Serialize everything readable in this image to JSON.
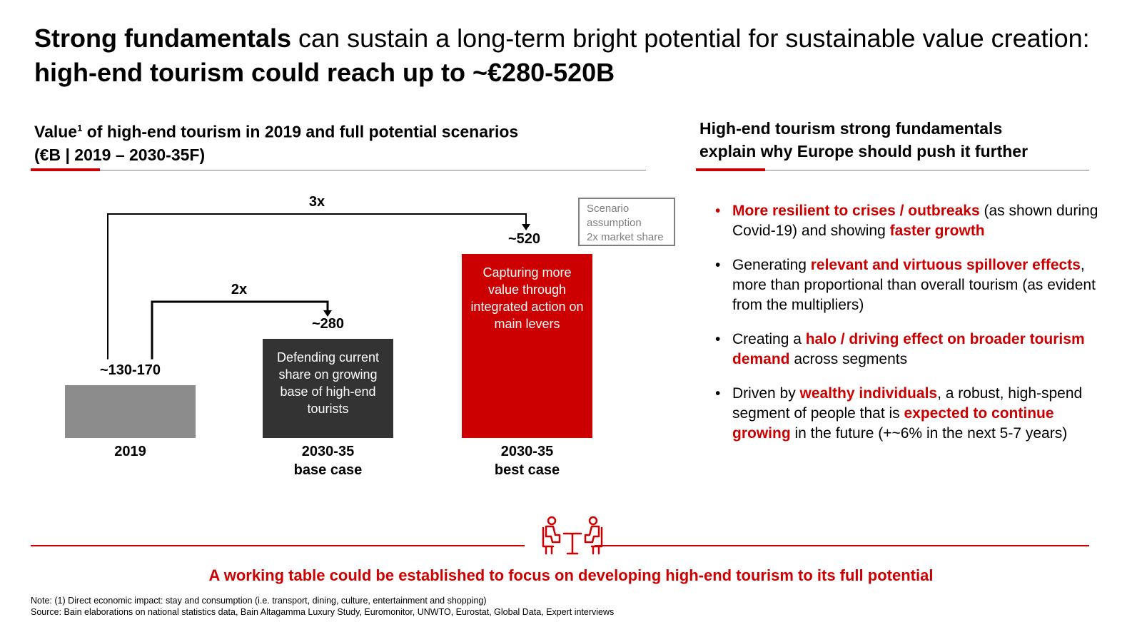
{
  "title": {
    "part1_bold": "Strong fundamentals",
    "part2": " can sustain a long-term bright potential for sustainable value creation: ",
    "part3_bold": "high-end tourism could reach up to ~€280-520B"
  },
  "left_section": {
    "title_line1_a": "Value",
    "title_sup": "1",
    "title_line1_b": " of high-end tourism in 2019 and full potential scenarios",
    "title_line2": "(€B | 2019 – 2030-35F)"
  },
  "right_section": {
    "title_line1": "High-end tourism strong fundamentals",
    "title_line2": "explain why Europe should push it further"
  },
  "chart_data": {
    "type": "bar",
    "title": "Value of high-end tourism in 2019 and full potential scenarios (€B | 2019 – 2030-35F)",
    "categories": [
      "2019",
      "2030-35 base case",
      "2030-35 best case"
    ],
    "category_labels": [
      {
        "line1": "2019",
        "line2": ""
      },
      {
        "line1": "2030-35",
        "line2": "base case"
      },
      {
        "line1": "2030-35",
        "line2": "best case"
      }
    ],
    "values": [
      150,
      280,
      520
    ],
    "value_labels": [
      "~130-170",
      "~280",
      "~520"
    ],
    "bar_texts": [
      "",
      "Defending current share on growing base of high-end tourists",
      "Capturing more value through integrated action on main levers"
    ],
    "bar_colors": [
      "#8c8c8c",
      "#333333",
      "#cc0000"
    ],
    "multipliers": [
      {
        "label": "2x",
        "from": "2019",
        "to": "2030-35 base case"
      },
      {
        "label": "3x",
        "from": "2019",
        "to": "2030-35 best case"
      }
    ],
    "callout": {
      "line1": "Scenario",
      "line2": "assumption",
      "line3": "2x market share"
    },
    "ylim": [
      0,
      520
    ]
  },
  "bullets": [
    {
      "segments": [
        {
          "t": "More resilient to crises / outbreaks",
          "hl": true
        },
        {
          "t": " (as shown during Covid-19) and showing ",
          "hl": false
        },
        {
          "t": "faster growth",
          "hl": true
        }
      ]
    },
    {
      "segments": [
        {
          "t": "Generating ",
          "hl": false
        },
        {
          "t": "relevant and virtuous spillover effects",
          "hl": true
        },
        {
          "t": ", more than proportional than overall tourism (as evident from the multipliers)",
          "hl": false
        }
      ]
    },
    {
      "segments": [
        {
          "t": "Creating a ",
          "hl": false
        },
        {
          "t": "halo / driving effect on broader tourism demand",
          "hl": true
        },
        {
          "t": " across segments",
          "hl": false
        }
      ]
    },
    {
      "segments": [
        {
          "t": "Driven by ",
          "hl": false
        },
        {
          "t": "wealthy individuals",
          "hl": true
        },
        {
          "t": ", a robust, high-spend segment of people that is ",
          "hl": false
        },
        {
          "t": "expected to continue growing",
          "hl": true
        },
        {
          "t": " in the future (+~6% in the next 5-7 years)",
          "hl": false
        }
      ]
    }
  ],
  "bullet_char": "•",
  "bottom_message": "A working table could be established to focus on developing high-end tourism to its full potential",
  "footnote_line1": "Note: (1) Direct economic impact: stay and consumption (i.e. transport, dining, culture, entertainment and shopping)",
  "footnote_line2": "Source: Bain elaborations on national statistics data, Bain Altagamma Luxury Study, Euromonitor, UNWTO, Eurostat, Global Data, Expert interviews",
  "colors": {
    "accent": "#cc0000",
    "grey": "#7f7f7f",
    "dark": "#333333"
  }
}
